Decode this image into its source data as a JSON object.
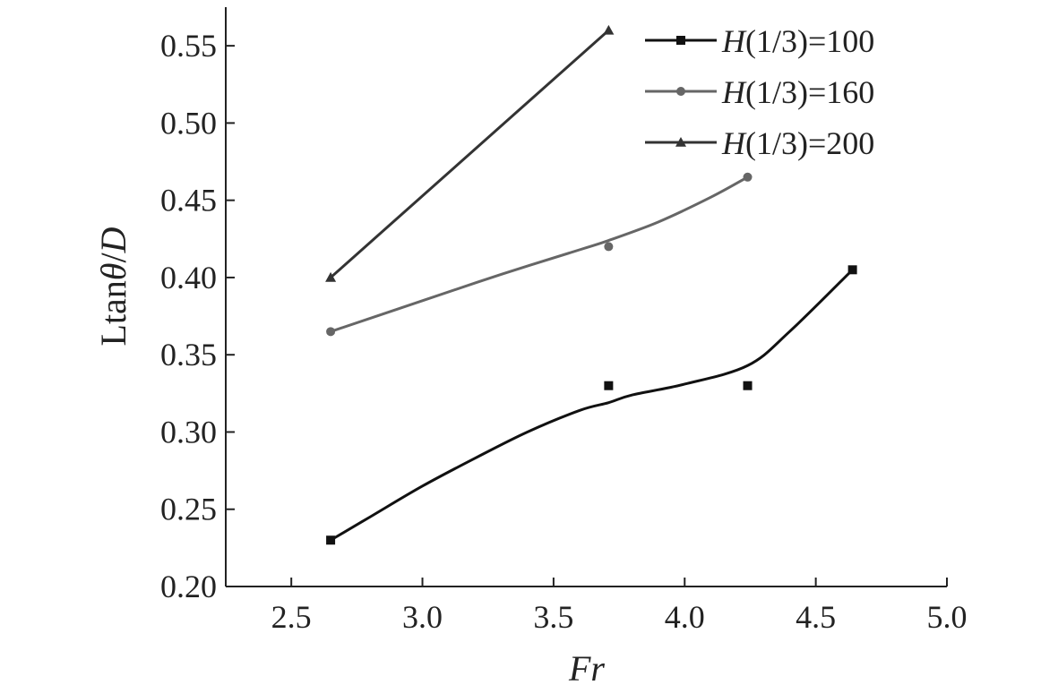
{
  "chart_data": {
    "type": "line",
    "xlabel": "Fr",
    "ylabel": {
      "prefix": "Ltan",
      "theta": "θ",
      "slash": "/",
      "D": "D"
    },
    "xlim": [
      2.25,
      5.0
    ],
    "ylim": [
      0.2,
      0.575
    ],
    "xticks": [
      "2.5",
      "3.0",
      "3.5",
      "4.0",
      "4.5",
      "5.0"
    ],
    "xtick_values": [
      2.5,
      3.0,
      3.5,
      4.0,
      4.5,
      5.0
    ],
    "yticks": [
      "0.20",
      "0.25",
      "0.30",
      "0.35",
      "0.40",
      "0.45",
      "0.50",
      "0.55"
    ],
    "ytick_values": [
      0.2,
      0.25,
      0.3,
      0.35,
      0.4,
      0.45,
      0.5,
      0.55
    ],
    "grid": false,
    "legend_position": "top-right",
    "series": [
      {
        "name": "H(1/3)=100",
        "name_parts": {
          "H": "H",
          "rest": "(1/3)=100"
        },
        "marker": "square",
        "color": "#111111",
        "x": [
          2.65,
          3.71,
          4.24,
          4.64
        ],
        "y": [
          0.23,
          0.33,
          0.33,
          0.405
        ],
        "curve_x": [
          2.65,
          2.8,
          3.0,
          3.2,
          3.4,
          3.6,
          3.71,
          3.8,
          4.0,
          4.24,
          4.4,
          4.64
        ],
        "curve_y": [
          0.23,
          0.245,
          0.265,
          0.283,
          0.3,
          0.314,
          0.319,
          0.324,
          0.331,
          0.343,
          0.365,
          0.405
        ]
      },
      {
        "name": "H(1/3)=160",
        "name_parts": {
          "H": "H",
          "rest": "(1/3)=160"
        },
        "marker": "circle",
        "color": "#666666",
        "x": [
          2.65,
          3.71,
          4.24
        ],
        "y": [
          0.365,
          0.42,
          0.465
        ],
        "curve_x": [
          2.65,
          3.0,
          3.3,
          3.6,
          3.71,
          3.9,
          4.1,
          4.24
        ],
        "curve_y": [
          0.365,
          0.385,
          0.402,
          0.418,
          0.424,
          0.436,
          0.452,
          0.465
        ]
      },
      {
        "name": "H(1/3)=200",
        "name_parts": {
          "H": "H",
          "rest": "(1/3)=200"
        },
        "marker": "triangle",
        "color": "#333333",
        "x": [
          2.65,
          3.71
        ],
        "y": [
          0.4,
          0.56
        ],
        "curve_x": [
          2.65,
          3.71
        ],
        "curve_y": [
          0.4,
          0.56
        ]
      }
    ]
  }
}
